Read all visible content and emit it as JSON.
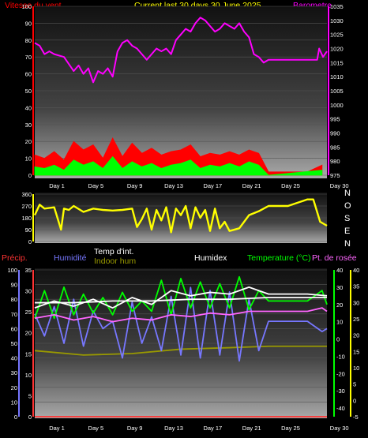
{
  "header": {
    "wind_label": "Vitesse du vent",
    "title": "Current last 30 days 30 June 2025",
    "baro_label": "Barometre"
  },
  "legend": {
    "precip": "Précip.",
    "humidity": "Humidité",
    "temp_int": "Temp d'int.",
    "indoor_hum": "Indoor hum",
    "humidex": "Humidex",
    "temperature": "Temperature (°C)",
    "dewpoint": "Pt. de rosée"
  },
  "compass": [
    "N",
    "O",
    "S",
    "E",
    "N"
  ],
  "colors": {
    "wind": "#ff0000",
    "baro": "#ff00ff",
    "gust": "#00ff00",
    "direction": "#ffff00",
    "humidity": "#7777ff",
    "temperature": "#00ff00",
    "dewpoint": "#ff66ff",
    "temp_int": "#ffffff",
    "indoor_hum": "#999900",
    "humidex": "#ffffff",
    "axis_left_top": "#ff0000",
    "axis_right_top": "#ff00ff"
  },
  "chart_data": [
    {
      "type": "area",
      "title": "Current last 30 days 30 June 2025",
      "xlabel": "",
      "categories": [
        "Day 1",
        "Day 5",
        "Day 9",
        "Day 13",
        "Day 17",
        "Day 21",
        "Day 25",
        "Day 30"
      ],
      "y_left": {
        "label": "Vitesse du vent",
        "range": [
          0,
          100
        ],
        "ticks": [
          0,
          10,
          20,
          30,
          40,
          50,
          60,
          70,
          80,
          90,
          100
        ]
      },
      "y_right": {
        "label": "Barometre",
        "range": [
          975,
          1035
        ],
        "ticks": [
          975,
          980,
          985,
          990,
          995,
          1000,
          1005,
          1010,
          1015,
          1020,
          1025,
          1030,
          1035
        ]
      },
      "grid": true,
      "series": [
        {
          "name": "Barometre",
          "axis": "right",
          "x": [
            0,
            0.5,
            1,
            1.5,
            2,
            3,
            4,
            4.5,
            5,
            5.5,
            6,
            6.5,
            7,
            7.5,
            8,
            8.5,
            9,
            9.5,
            10,
            10.5,
            11,
            11.5,
            12,
            12.5,
            13,
            13.5,
            14,
            14.5,
            15,
            15.5,
            16,
            16.5,
            17,
            17.5,
            18,
            18.5,
            19,
            19.5,
            20,
            20.5,
            21,
            21.5,
            22,
            22.5,
            23,
            23.5,
            24,
            26,
            28,
            29,
            29.2,
            29.6,
            30
          ],
          "values": [
            1022,
            1021,
            1018,
            1019,
            1018,
            1017,
            1012,
            1014,
            1011,
            1013,
            1008,
            1012,
            1011,
            1013,
            1010,
            1019,
            1022,
            1023,
            1021,
            1020,
            1018,
            1016,
            1018,
            1020,
            1019,
            1020,
            1018,
            1023,
            1025,
            1027,
            1026,
            1029,
            1031,
            1030,
            1028,
            1026,
            1027,
            1029,
            1028,
            1027,
            1029,
            1026,
            1024,
            1018,
            1017,
            1015,
            1016,
            1016,
            1016,
            1016,
            1020,
            1017,
            1019
          ]
        },
        {
          "name": "Vitesse du vent",
          "axis": "left",
          "x": [
            0,
            1,
            2,
            3,
            4,
            5,
            6,
            7,
            8,
            9,
            10,
            11,
            12,
            13,
            14,
            15,
            16,
            17,
            18,
            19,
            20,
            21,
            22,
            23,
            24,
            26,
            28,
            29.5
          ],
          "values": [
            12,
            10,
            14,
            9,
            20,
            15,
            18,
            10,
            22,
            11,
            19,
            13,
            16,
            12,
            14,
            15,
            18,
            11,
            13,
            12,
            14,
            12,
            15,
            13,
            2,
            2,
            2,
            6
          ]
        },
        {
          "name": "Gust",
          "axis": "left",
          "x": [
            0,
            1,
            2,
            3,
            4,
            5,
            6,
            7,
            8,
            9,
            10,
            11,
            12,
            13,
            14,
            15,
            16,
            17,
            18,
            19,
            20,
            21,
            22,
            23,
            24,
            29.5
          ],
          "values": [
            5,
            4,
            6,
            3,
            9,
            6,
            8,
            4,
            11,
            4,
            8,
            5,
            7,
            4,
            6,
            7,
            9,
            4,
            6,
            5,
            7,
            5,
            8,
            6,
            0,
            3
          ]
        }
      ]
    },
    {
      "type": "line",
      "categories": [],
      "y_left": {
        "range": [
          0,
          360
        ],
        "ticks": [
          0,
          90,
          180,
          270,
          360
        ]
      },
      "series": [
        {
          "name": "Direction",
          "x": [
            0,
            0.5,
            1,
            2,
            2.7,
            3,
            3.5,
            4,
            5,
            6,
            7,
            8,
            9,
            10,
            10.5,
            11,
            11.5,
            12,
            12.5,
            13,
            13.5,
            14,
            14.5,
            15,
            15.5,
            16,
            16.5,
            17,
            17.5,
            18,
            18.5,
            19,
            19.5,
            20,
            21,
            21.5,
            22,
            23,
            24,
            26,
            28,
            28.6,
            29.3,
            30
          ],
          "values": [
            200,
            280,
            250,
            260,
            90,
            250,
            240,
            270,
            225,
            250,
            240,
            235,
            240,
            250,
            110,
            170,
            250,
            90,
            240,
            160,
            260,
            70,
            250,
            200,
            270,
            100,
            260,
            180,
            240,
            80,
            250,
            100,
            150,
            80,
            100,
            150,
            200,
            230,
            270,
            270,
            320,
            320,
            150,
            120
          ]
        }
      ]
    },
    {
      "type": "line",
      "categories": [
        "Day 1",
        "Day 5",
        "Day 9",
        "Day 13",
        "Day 17",
        "Day 21",
        "Day 25",
        "Day 30"
      ],
      "y_left_outer": {
        "label": "Précip.",
        "range": [
          0,
          35
        ],
        "ticks": [
          0,
          5,
          10,
          15,
          20,
          25,
          30,
          35
        ]
      },
      "y_left_inner": {
        "label": "Humidité",
        "range": [
          0,
          100
        ],
        "ticks": [
          0,
          10,
          20,
          30,
          40,
          50,
          60,
          70,
          80,
          90,
          100
        ]
      },
      "y_right_inner": {
        "label": "Temperature (°C)",
        "range": [
          -45,
          40
        ],
        "ticks": [
          -40,
          -30,
          -20,
          -10,
          0,
          10,
          20,
          30,
          40
        ]
      },
      "y_right_outer": {
        "label": "Pt. de rosée",
        "range": [
          -5,
          40
        ],
        "ticks": [
          -5,
          0,
          5,
          10,
          15,
          20,
          25,
          30,
          35,
          40
        ]
      },
      "grid": true,
      "series": [
        {
          "name": "Humidité",
          "axis": "humidity",
          "x": [
            0,
            1,
            2,
            3,
            4,
            5,
            6,
            7,
            8,
            9,
            10,
            11,
            12,
            13,
            14,
            15,
            16,
            17,
            18,
            19,
            20,
            21,
            22,
            23,
            24,
            28,
            29.5,
            30
          ],
          "values": [
            70,
            55,
            75,
            50,
            80,
            48,
            72,
            60,
            65,
            40,
            78,
            50,
            68,
            45,
            82,
            42,
            88,
            40,
            86,
            42,
            85,
            38,
            80,
            45,
            65,
            65,
            58,
            60
          ]
        },
        {
          "name": "Temperature (°C)",
          "axis": "temperature",
          "x": [
            0,
            1,
            2,
            3,
            4,
            5,
            6,
            7,
            8,
            9,
            10,
            11,
            12,
            13,
            14,
            15,
            16,
            17,
            18,
            19,
            20,
            21,
            22,
            23,
            24,
            28,
            29.5,
            30
          ],
          "values": [
            12,
            28,
            12,
            30,
            14,
            26,
            15,
            24,
            14,
            27,
            16,
            22,
            16,
            34,
            14,
            35,
            18,
            33,
            18,
            32,
            18,
            36,
            17,
            28,
            22,
            22,
            28,
            20
          ]
        },
        {
          "name": "Pt. de rosée",
          "axis": "temperature",
          "x": [
            0,
            2,
            4,
            6,
            8,
            10,
            12,
            14,
            16,
            18,
            20,
            22,
            24,
            28,
            29.5,
            30
          ],
          "values": [
            12,
            14,
            11,
            13,
            10,
            12,
            11,
            14,
            13,
            15,
            14,
            16,
            16,
            16,
            18,
            16
          ]
        },
        {
          "name": "Temp d'int.",
          "axis": "temperature",
          "x": [
            0,
            4,
            8,
            12,
            16,
            20,
            24,
            30
          ],
          "values": [
            21,
            21,
            22,
            22,
            23,
            23,
            24,
            24
          ]
        },
        {
          "name": "Indoor hum",
          "axis": "humidity",
          "x": [
            0,
            5,
            10,
            15,
            20,
            24,
            30
          ],
          "values": [
            45,
            42,
            43,
            46,
            47,
            48,
            48
          ]
        },
        {
          "name": "Humidex",
          "axis": "temperature",
          "x": [
            0,
            2,
            4,
            6,
            8,
            10,
            12,
            14,
            16,
            18,
            20,
            22,
            24,
            28,
            30
          ],
          "values": [
            18,
            22,
            19,
            23,
            18,
            24,
            20,
            28,
            25,
            27,
            26,
            30,
            26,
            26,
            25
          ]
        },
        {
          "name": "Précip.",
          "axis": "precip",
          "x": [
            0,
            30
          ],
          "values": [
            0,
            0
          ]
        }
      ]
    }
  ]
}
